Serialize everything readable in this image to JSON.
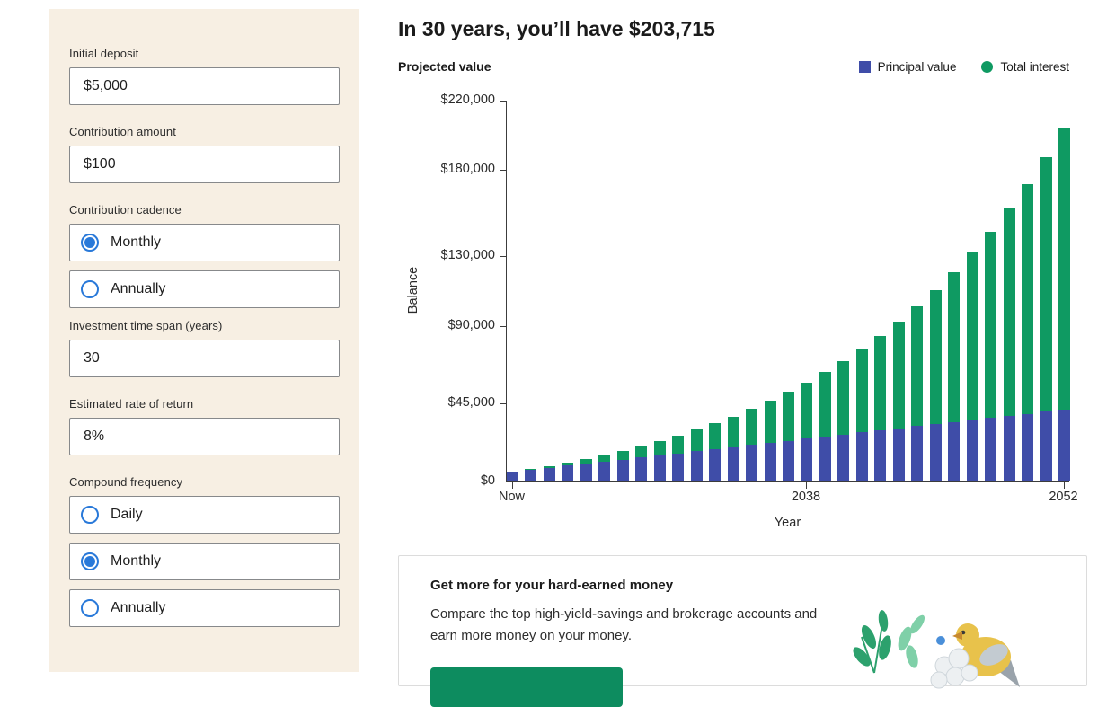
{
  "colors": {
    "sidebar_bg": "#f7efe3",
    "radio_blue": "#2979d9",
    "principal": "#3f4da8",
    "interest": "#0f9a62",
    "cta_button_green": "#0d8c5f"
  },
  "sidebar": {
    "fields": [
      {
        "name": "initial-deposit",
        "type": "input",
        "label": "Initial deposit",
        "value": "$5,000"
      },
      {
        "name": "contribution-amount",
        "type": "input",
        "label": "Contribution amount",
        "value": "$100"
      },
      {
        "name": "contribution-cadence",
        "type": "radio-group",
        "label": "Contribution cadence",
        "options": [
          {
            "label": "Monthly",
            "selected": true
          },
          {
            "label": "Annually",
            "selected": false
          }
        ]
      },
      {
        "name": "investment-time-span",
        "type": "input",
        "label": "Investment time span (years)",
        "value": "30"
      },
      {
        "name": "estimated-rate-of-return",
        "type": "input",
        "label": "Estimated rate of return",
        "value": "8%"
      },
      {
        "name": "compound-frequency",
        "type": "radio-group",
        "label": "Compound frequency",
        "options": [
          {
            "label": "Daily",
            "selected": false
          },
          {
            "label": "Monthly",
            "selected": true
          },
          {
            "label": "Annually",
            "selected": false
          }
        ]
      }
    ]
  },
  "main": {
    "headline": "In 30 years, you’ll have $203,715",
    "chart_title": "Projected value",
    "legend": [
      {
        "label": "Principal value",
        "color": "#3f4da8",
        "shape": "square"
      },
      {
        "label": "Total interest",
        "color": "#0f9a62",
        "shape": "circle"
      }
    ]
  },
  "chart_data": {
    "type": "bar",
    "stacked": true,
    "title": "Projected value",
    "xlabel": "Year",
    "ylabel": "Balance",
    "ylim": [
      0,
      220000
    ],
    "grid": false,
    "legend_position": "top-right",
    "yticks": [
      {
        "value": 0,
        "label": "$0"
      },
      {
        "value": 45000,
        "label": "$45,000"
      },
      {
        "value": 90000,
        "label": "$90,000"
      },
      {
        "value": 130000,
        "label": "$130,000"
      },
      {
        "value": 180000,
        "label": "$180,000"
      },
      {
        "value": 220000,
        "label": "$220,000"
      }
    ],
    "xticks": [
      {
        "index": 0,
        "label": "Now"
      },
      {
        "index": 16,
        "label": "2038"
      },
      {
        "index": 30,
        "label": "2052"
      }
    ],
    "series": [
      {
        "name": "Principal value",
        "color": "#3f4da8",
        "values": [
          5000,
          6200,
          7400,
          8600,
          9800,
          11000,
          12200,
          13400,
          14600,
          15800,
          17000,
          18200,
          19400,
          20600,
          21800,
          23000,
          24200,
          25400,
          26600,
          27800,
          29000,
          30200,
          31400,
          32600,
          33800,
          35000,
          36200,
          37400,
          38600,
          39800,
          41000
        ]
      },
      {
        "name": "Total interest",
        "color": "#0f9a62",
        "values": [
          0,
          460,
          1058,
          1805,
          2713,
          3797,
          5070,
          6549,
          8249,
          10191,
          12393,
          14878,
          17668,
          20790,
          24270,
          28139,
          32428,
          37174,
          42412,
          48185,
          54537,
          61516,
          69173,
          77566,
          86754,
          96805,
          107790,
          119786,
          132878,
          147155,
          162715
        ]
      }
    ],
    "final_total": "$203,715"
  },
  "cta_card": {
    "title": "Get more for your hard-earned money",
    "body": "Compare the top high-yield-savings and brokerage accounts and earn more money on your money."
  }
}
